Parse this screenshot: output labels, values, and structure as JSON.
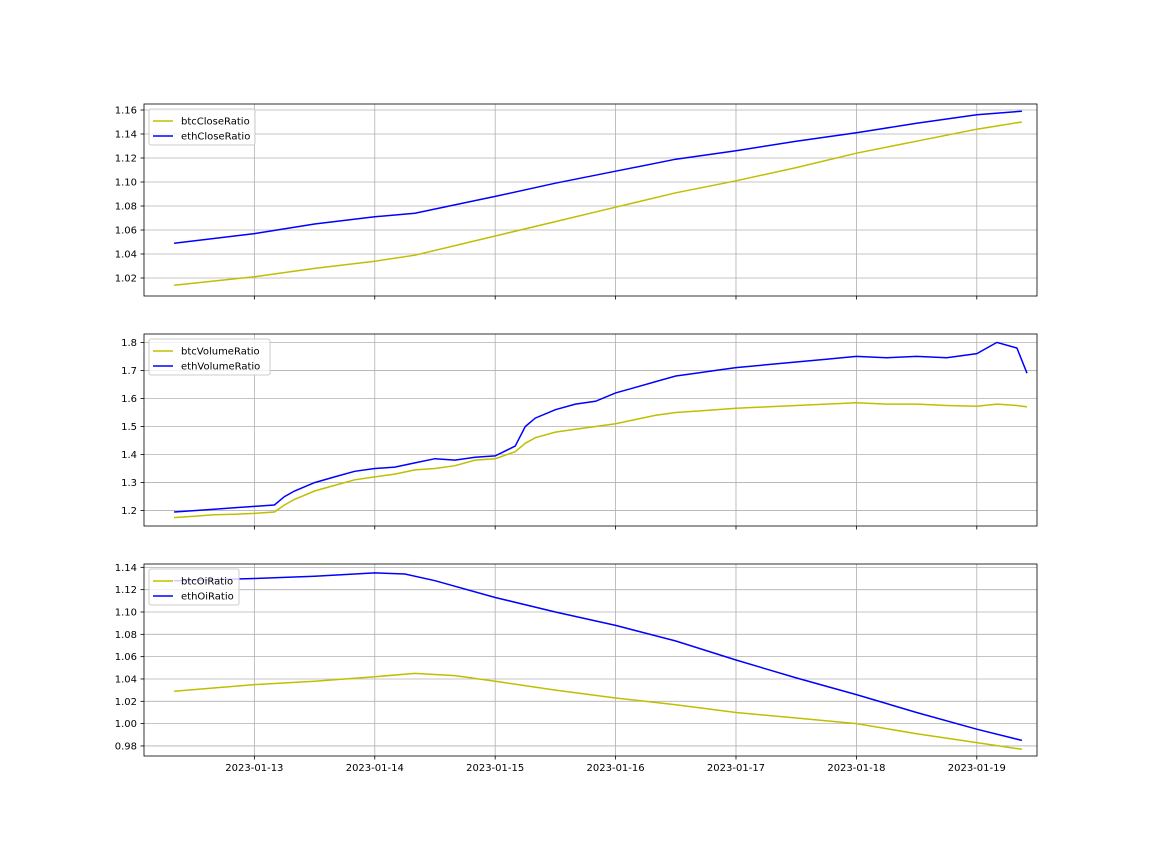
{
  "chart_data": [
    {
      "type": "line",
      "title": "",
      "xlabel": "",
      "ylabel": "",
      "x_range": [
        "2023-01-12 02:00",
        "2023-01-19 12:00"
      ],
      "ylim": [
        1.005,
        1.165
      ],
      "yticks": [
        "1.02",
        "1.04",
        "1.06",
        "1.08",
        "1.10",
        "1.12",
        "1.14",
        "1.16"
      ],
      "ytick_values": [
        1.02,
        1.04,
        1.06,
        1.08,
        1.1,
        1.12,
        1.14,
        1.16
      ],
      "xtick_labels": [],
      "grid": true,
      "legend_position": "upper-left",
      "series": [
        {
          "name": "btcCloseRatio",
          "color": "#bfbf00",
          "points": [
            [
              "2023-01-12 08:00",
              1.014
            ],
            [
              "2023-01-13 00:00",
              1.021
            ],
            [
              "2023-01-13 12:00",
              1.028
            ],
            [
              "2023-01-14 00:00",
              1.034
            ],
            [
              "2023-01-14 08:00",
              1.039
            ],
            [
              "2023-01-15 00:00",
              1.055
            ],
            [
              "2023-01-15 12:00",
              1.067
            ],
            [
              "2023-01-16 00:00",
              1.079
            ],
            [
              "2023-01-16 12:00",
              1.091
            ],
            [
              "2023-01-17 00:00",
              1.101
            ],
            [
              "2023-01-17 12:00",
              1.112
            ],
            [
              "2023-01-18 00:00",
              1.124
            ],
            [
              "2023-01-18 12:00",
              1.134
            ],
            [
              "2023-01-19 00:00",
              1.144
            ],
            [
              "2023-01-19 09:00",
              1.15
            ]
          ]
        },
        {
          "name": "ethCloseRatio",
          "color": "#0000ff",
          "points": [
            [
              "2023-01-12 08:00",
              1.049
            ],
            [
              "2023-01-13 00:00",
              1.057
            ],
            [
              "2023-01-13 12:00",
              1.065
            ],
            [
              "2023-01-14 00:00",
              1.071
            ],
            [
              "2023-01-14 08:00",
              1.074
            ],
            [
              "2023-01-15 00:00",
              1.088
            ],
            [
              "2023-01-15 12:00",
              1.099
            ],
            [
              "2023-01-16 00:00",
              1.109
            ],
            [
              "2023-01-16 12:00",
              1.119
            ],
            [
              "2023-01-17 00:00",
              1.126
            ],
            [
              "2023-01-17 12:00",
              1.134
            ],
            [
              "2023-01-18 00:00",
              1.141
            ],
            [
              "2023-01-18 12:00",
              1.149
            ],
            [
              "2023-01-19 00:00",
              1.156
            ],
            [
              "2023-01-19 09:00",
              1.159
            ]
          ]
        }
      ]
    },
    {
      "type": "line",
      "title": "",
      "xlabel": "",
      "ylabel": "",
      "x_range": [
        "2023-01-12 02:00",
        "2023-01-19 12:00"
      ],
      "ylim": [
        1.145,
        1.83
      ],
      "yticks": [
        "1.2",
        "1.3",
        "1.4",
        "1.5",
        "1.6",
        "1.7",
        "1.8"
      ],
      "ytick_values": [
        1.2,
        1.3,
        1.4,
        1.5,
        1.6,
        1.7,
        1.8
      ],
      "xtick_labels": [],
      "grid": true,
      "legend_position": "upper-left",
      "series": [
        {
          "name": "btcVolumeRatio",
          "color": "#bfbf00",
          "points": [
            [
              "2023-01-12 08:00",
              1.175
            ],
            [
              "2023-01-12 12:00",
              1.18
            ],
            [
              "2023-01-12 16:00",
              1.185
            ],
            [
              "2023-01-12 20:00",
              1.187
            ],
            [
              "2023-01-13 00:00",
              1.19
            ],
            [
              "2023-01-13 04:00",
              1.195
            ],
            [
              "2023-01-13 06:00",
              1.22
            ],
            [
              "2023-01-13 08:00",
              1.24
            ],
            [
              "2023-01-13 12:00",
              1.27
            ],
            [
              "2023-01-13 16:00",
              1.29
            ],
            [
              "2023-01-13 20:00",
              1.31
            ],
            [
              "2023-01-14 00:00",
              1.32
            ],
            [
              "2023-01-14 04:00",
              1.33
            ],
            [
              "2023-01-14 08:00",
              1.345
            ],
            [
              "2023-01-14 12:00",
              1.35
            ],
            [
              "2023-01-14 16:00",
              1.36
            ],
            [
              "2023-01-14 20:00",
              1.38
            ],
            [
              "2023-01-15 00:00",
              1.385
            ],
            [
              "2023-01-15 04:00",
              1.41
            ],
            [
              "2023-01-15 06:00",
              1.44
            ],
            [
              "2023-01-15 08:00",
              1.46
            ],
            [
              "2023-01-15 12:00",
              1.48
            ],
            [
              "2023-01-15 16:00",
              1.49
            ],
            [
              "2023-01-15 20:00",
              1.5
            ],
            [
              "2023-01-16 00:00",
              1.51
            ],
            [
              "2023-01-16 04:00",
              1.525
            ],
            [
              "2023-01-16 08:00",
              1.54
            ],
            [
              "2023-01-16 12:00",
              1.55
            ],
            [
              "2023-01-16 16:00",
              1.555
            ],
            [
              "2023-01-16 20:00",
              1.56
            ],
            [
              "2023-01-17 00:00",
              1.565
            ],
            [
              "2023-01-17 06:00",
              1.57
            ],
            [
              "2023-01-17 12:00",
              1.575
            ],
            [
              "2023-01-17 18:00",
              1.58
            ],
            [
              "2023-01-18 00:00",
              1.585
            ],
            [
              "2023-01-18 06:00",
              1.58
            ],
            [
              "2023-01-18 12:00",
              1.58
            ],
            [
              "2023-01-18 18:00",
              1.575
            ],
            [
              "2023-01-19 00:00",
              1.572
            ],
            [
              "2023-01-19 04:00",
              1.58
            ],
            [
              "2023-01-19 08:00",
              1.575
            ],
            [
              "2023-01-19 10:00",
              1.57
            ]
          ]
        },
        {
          "name": "ethVolumeRatio",
          "color": "#0000ff",
          "points": [
            [
              "2023-01-12 08:00",
              1.195
            ],
            [
              "2023-01-12 12:00",
              1.2
            ],
            [
              "2023-01-12 16:00",
              1.205
            ],
            [
              "2023-01-12 20:00",
              1.21
            ],
            [
              "2023-01-13 00:00",
              1.215
            ],
            [
              "2023-01-13 04:00",
              1.22
            ],
            [
              "2023-01-13 06:00",
              1.25
            ],
            [
              "2023-01-13 08:00",
              1.27
            ],
            [
              "2023-01-13 12:00",
              1.3
            ],
            [
              "2023-01-13 16:00",
              1.32
            ],
            [
              "2023-01-13 20:00",
              1.34
            ],
            [
              "2023-01-14 00:00",
              1.35
            ],
            [
              "2023-01-14 04:00",
              1.355
            ],
            [
              "2023-01-14 08:00",
              1.37
            ],
            [
              "2023-01-14 12:00",
              1.385
            ],
            [
              "2023-01-14 16:00",
              1.38
            ],
            [
              "2023-01-14 20:00",
              1.39
            ],
            [
              "2023-01-15 00:00",
              1.395
            ],
            [
              "2023-01-15 04:00",
              1.43
            ],
            [
              "2023-01-15 06:00",
              1.5
            ],
            [
              "2023-01-15 08:00",
              1.53
            ],
            [
              "2023-01-15 12:00",
              1.56
            ],
            [
              "2023-01-15 16:00",
              1.58
            ],
            [
              "2023-01-15 20:00",
              1.59
            ],
            [
              "2023-01-16 00:00",
              1.62
            ],
            [
              "2023-01-16 04:00",
              1.64
            ],
            [
              "2023-01-16 08:00",
              1.66
            ],
            [
              "2023-01-16 12:00",
              1.68
            ],
            [
              "2023-01-16 16:00",
              1.69
            ],
            [
              "2023-01-16 20:00",
              1.7
            ],
            [
              "2023-01-17 00:00",
              1.71
            ],
            [
              "2023-01-17 06:00",
              1.72
            ],
            [
              "2023-01-17 12:00",
              1.73
            ],
            [
              "2023-01-17 18:00",
              1.74
            ],
            [
              "2023-01-18 00:00",
              1.75
            ],
            [
              "2023-01-18 06:00",
              1.745
            ],
            [
              "2023-01-18 12:00",
              1.75
            ],
            [
              "2023-01-18 18:00",
              1.745
            ],
            [
              "2023-01-19 00:00",
              1.76
            ],
            [
              "2023-01-19 04:00",
              1.8
            ],
            [
              "2023-01-19 08:00",
              1.78
            ],
            [
              "2023-01-19 10:00",
              1.69
            ]
          ]
        }
      ]
    },
    {
      "type": "line",
      "title": "",
      "xlabel": "",
      "ylabel": "",
      "x_range": [
        "2023-01-12 02:00",
        "2023-01-19 12:00"
      ],
      "ylim": [
        0.971,
        1.143
      ],
      "yticks": [
        "0.98",
        "1.00",
        "1.02",
        "1.04",
        "1.06",
        "1.08",
        "1.10",
        "1.12",
        "1.14"
      ],
      "ytick_values": [
        0.98,
        1.0,
        1.02,
        1.04,
        1.06,
        1.08,
        1.1,
        1.12,
        1.14
      ],
      "xtick_labels": [
        "2023-01-13",
        "2023-01-14",
        "2023-01-15",
        "2023-01-16",
        "2023-01-17",
        "2023-01-18",
        "2023-01-19"
      ],
      "grid": true,
      "legend_position": "upper-left",
      "series": [
        {
          "name": "btcOiRatio",
          "color": "#bfbf00",
          "points": [
            [
              "2023-01-12 08:00",
              1.029
            ],
            [
              "2023-01-13 00:00",
              1.035
            ],
            [
              "2023-01-13 12:00",
              1.038
            ],
            [
              "2023-01-14 00:00",
              1.042
            ],
            [
              "2023-01-14 08:00",
              1.045
            ],
            [
              "2023-01-14 16:00",
              1.043
            ],
            [
              "2023-01-15 00:00",
              1.038
            ],
            [
              "2023-01-15 12:00",
              1.03
            ],
            [
              "2023-01-16 00:00",
              1.023
            ],
            [
              "2023-01-16 12:00",
              1.017
            ],
            [
              "2023-01-17 00:00",
              1.01
            ],
            [
              "2023-01-17 12:00",
              1.005
            ],
            [
              "2023-01-18 00:00",
              1.0
            ],
            [
              "2023-01-18 12:00",
              0.991
            ],
            [
              "2023-01-19 00:00",
              0.983
            ],
            [
              "2023-01-19 09:00",
              0.977
            ]
          ]
        },
        {
          "name": "ethOiRatio",
          "color": "#0000ff",
          "points": [
            [
              "2023-01-12 08:00",
              1.128
            ],
            [
              "2023-01-13 00:00",
              1.13
            ],
            [
              "2023-01-13 12:00",
              1.132
            ],
            [
              "2023-01-14 00:00",
              1.135
            ],
            [
              "2023-01-14 06:00",
              1.134
            ],
            [
              "2023-01-14 12:00",
              1.128
            ],
            [
              "2023-01-15 00:00",
              1.113
            ],
            [
              "2023-01-15 12:00",
              1.1
            ],
            [
              "2023-01-16 00:00",
              1.088
            ],
            [
              "2023-01-16 12:00",
              1.074
            ],
            [
              "2023-01-17 00:00",
              1.057
            ],
            [
              "2023-01-17 12:00",
              1.041
            ],
            [
              "2023-01-18 00:00",
              1.026
            ],
            [
              "2023-01-18 12:00",
              1.01
            ],
            [
              "2023-01-19 00:00",
              0.995
            ],
            [
              "2023-01-19 09:00",
              0.985
            ]
          ]
        }
      ]
    }
  ]
}
